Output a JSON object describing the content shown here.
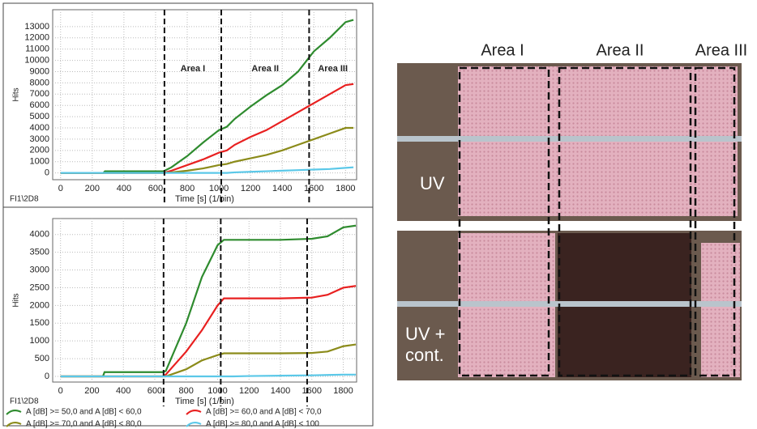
{
  "chart_data": [
    {
      "type": "line",
      "y_label": "Hits",
      "x_label": "Time [s] (1/bin)",
      "corner_label": "FI1\\2D8",
      "xlim": [
        -50,
        1870
      ],
      "xticks": [
        0,
        200,
        400,
        600,
        800,
        1000,
        1200,
        1400,
        1600,
        1800
      ],
      "ylim": [
        -600,
        14500
      ],
      "yticks": [
        0,
        1000,
        2000,
        3000,
        4000,
        5000,
        6000,
        7000,
        8000,
        9000,
        10000,
        11000,
        12000,
        13000
      ],
      "grid": true,
      "area_boundaries": [
        656,
        1015,
        1570
      ],
      "area_labels": [
        "Area I",
        "Area II",
        "Area III"
      ],
      "x": [
        0,
        270,
        280,
        650,
        700,
        800,
        900,
        1000,
        1050,
        1100,
        1200,
        1300,
        1400,
        1500,
        1600,
        1700,
        1800,
        1850
      ],
      "series": [
        {
          "color": "#2e8b2e",
          "values": [
            0,
            0,
            150,
            150,
            500,
            1500,
            2700,
            3800,
            4100,
            4800,
            5900,
            6900,
            7800,
            9000,
            10800,
            12000,
            13400,
            13600
          ]
        },
        {
          "color": "#e82020",
          "values": [
            0,
            0,
            0,
            0,
            200,
            700,
            1200,
            1800,
            2000,
            2500,
            3200,
            3800,
            4600,
            5400,
            6200,
            7000,
            7800,
            7900
          ]
        },
        {
          "color": "#8b8b1a",
          "values": [
            0,
            0,
            0,
            0,
            50,
            200,
            400,
            700,
            800,
            1000,
            1300,
            1600,
            2000,
            2500,
            3000,
            3500,
            4000,
            4000
          ]
        },
        {
          "color": "#5bc8e8",
          "values": [
            0,
            0,
            0,
            0,
            0,
            0,
            0,
            0,
            0,
            50,
            100,
            150,
            200,
            250,
            300,
            350,
            450,
            500
          ]
        }
      ]
    },
    {
      "type": "line",
      "y_label": "Hits",
      "x_label": "Time [s] (1/bin)",
      "corner_label": "FI1\\2D8",
      "xlim": [
        -50,
        1885
      ],
      "xticks": [
        0,
        200,
        400,
        600,
        800,
        1000,
        1200,
        1400,
        1600,
        1800
      ],
      "ylim": [
        -160,
        4450
      ],
      "yticks": [
        0,
        500,
        1000,
        1500,
        2000,
        2500,
        3000,
        3500,
        4000
      ],
      "grid": true,
      "area_boundaries": [
        656,
        1020,
        1570
      ],
      "x": [
        0,
        270,
        280,
        650,
        670,
        800,
        900,
        1000,
        1040,
        1100,
        1200,
        1400,
        1600,
        1700,
        1800,
        1880
      ],
      "series": [
        {
          "name": "A [dB] >= 50,0 and A [dB] < 60,0",
          "color": "#2e8b2e",
          "values": [
            0,
            0,
            120,
            120,
            150,
            1500,
            2800,
            3700,
            3850,
            3850,
            3850,
            3850,
            3880,
            3950,
            4200,
            4250
          ]
        },
        {
          "name": "A [dB] >= 60,0 and A [dB] < 70,0",
          "color": "#e82020",
          "values": [
            0,
            0,
            0,
            0,
            50,
            700,
            1300,
            2000,
            2200,
            2200,
            2200,
            2200,
            2220,
            2300,
            2500,
            2550
          ]
        },
        {
          "name": "A [dB] >= 70,0 and A [dB] < 80,0",
          "color": "#8b8b1a",
          "values": [
            0,
            0,
            0,
            0,
            0,
            200,
            450,
            600,
            650,
            650,
            650,
            650,
            660,
            700,
            850,
            900
          ]
        },
        {
          "name": "A [dB] >= 80,0 and A [dB] < 100",
          "color": "#5bc8e8",
          "values": [
            0,
            0,
            0,
            0,
            0,
            0,
            0,
            0,
            0,
            0,
            10,
            20,
            30,
            40,
            50,
            50
          ]
        }
      ]
    }
  ],
  "photo": {
    "area_labels": [
      "Area I",
      "Area II",
      "Area III"
    ],
    "sample_labels": [
      "UV",
      "UV +",
      "cont."
    ]
  }
}
